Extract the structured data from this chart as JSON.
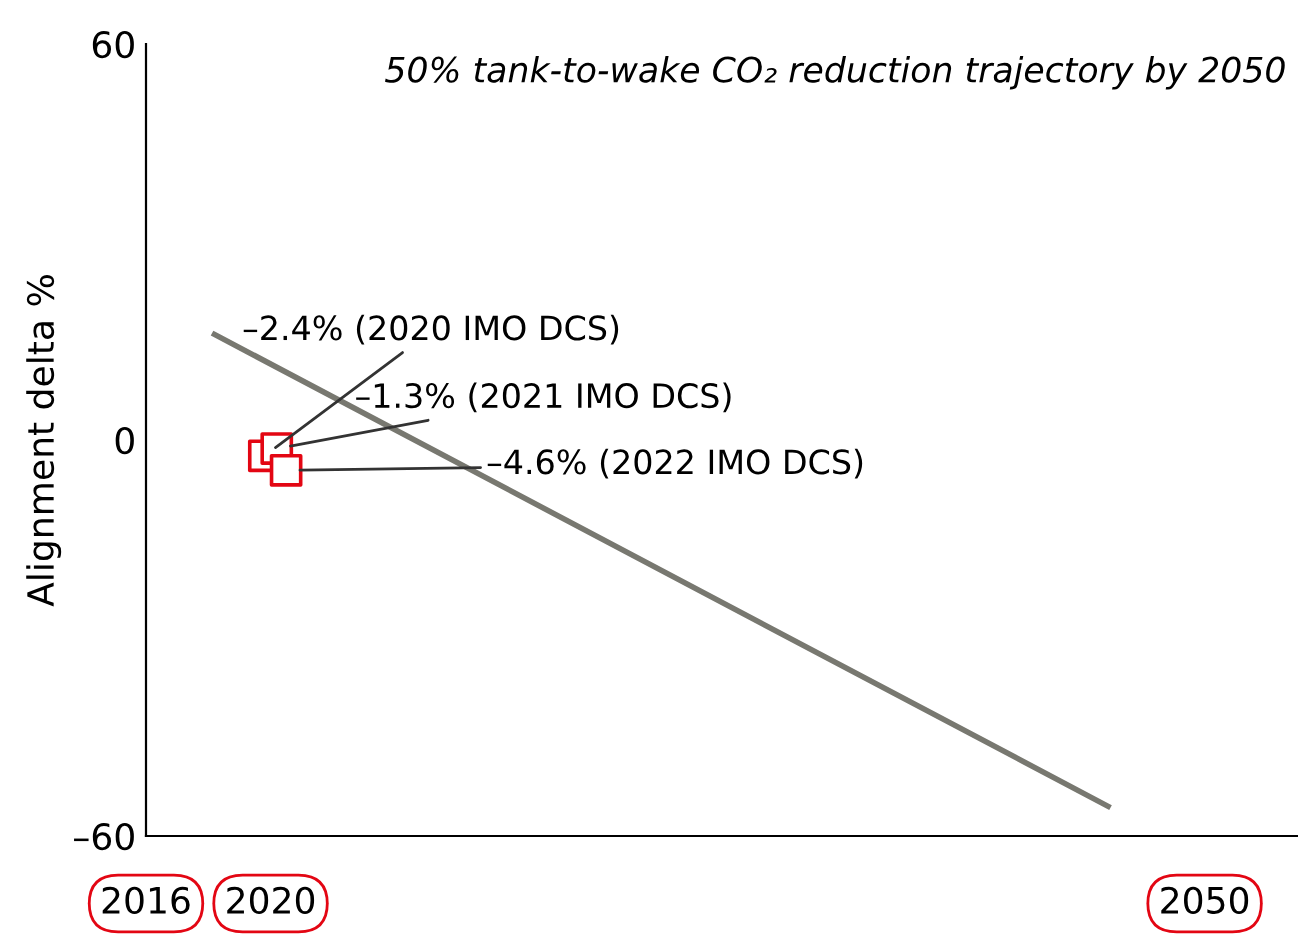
{
  "chart_data": {
    "type": "line",
    "ylabel": "Alignment delta %",
    "annotations": [
      "50% tank-to-wake CO₂ reduction trajectory by 2050"
    ],
    "xlim": [
      2016,
      2053
    ],
    "xticks": [
      2016,
      2020,
      2050
    ],
    "ylim": [
      -60,
      60
    ],
    "yticks": [
      {
        "value": -60,
        "label": "–60"
      },
      0,
      60
    ],
    "grid": false,
    "legend": false,
    "series": [
      {
        "color": "#787870",
        "x": [
          2018.2,
          2046.9
        ],
        "values": [
          16,
          -55.5
        ],
        "marker": "none"
      },
      {
        "type": "scatter",
        "color": "#e30613",
        "x": [
          2019.8,
          2020.2,
          2020.5
        ],
        "values": [
          -2.4,
          -1.3,
          -4.6
        ],
        "marker": "square",
        "value_labels": [
          "–2.4% (2020 IMO DCS)",
          "–1.3% (2021 IMO DCS)",
          "–4.6% (2022 IMO DCS)"
        ]
      }
    ]
  }
}
